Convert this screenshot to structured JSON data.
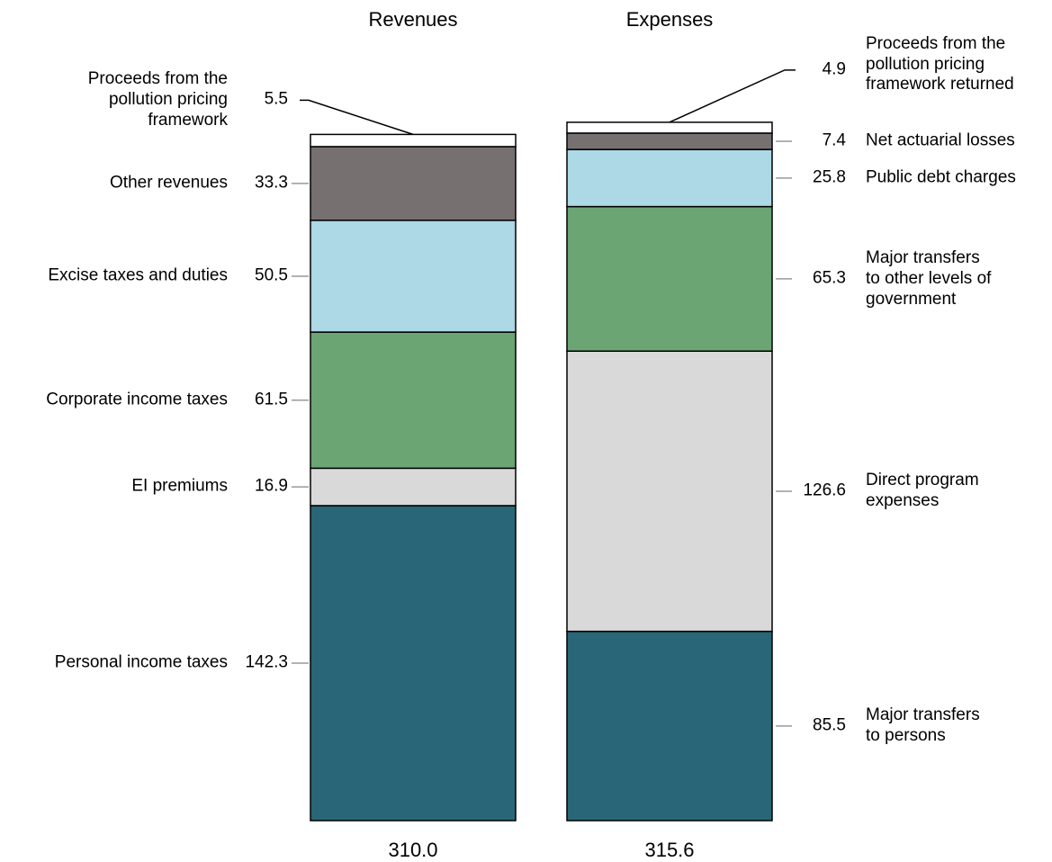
{
  "chart_data": {
    "type": "stacked_bar",
    "bars": [
      {
        "title": "Revenues",
        "total": 310,
        "total_label": "310.0",
        "segments": [
          {
            "name": "Personal income taxes",
            "value": 142.3,
            "color": "#296677"
          },
          {
            "name": "EI premiums",
            "value": 16.9,
            "color": "#d9d9d9"
          },
          {
            "name": "Corporate income taxes",
            "value": 61.5,
            "color": "#6ba574"
          },
          {
            "name": "Excise taxes and duties",
            "value": 50.5,
            "color": "#add8e6"
          },
          {
            "name": "Other revenues",
            "value": 33.3,
            "color": "#767170"
          },
          {
            "name": "Proceeds from the\npollution pricing\nframework",
            "value": 5.5,
            "color": "#ffffff"
          }
        ]
      },
      {
        "title": "Expenses",
        "total": 315.6,
        "total_label": "315.6",
        "segments": [
          {
            "name": "Major transfers\nto persons",
            "value": 85.5,
            "color": "#296677"
          },
          {
            "name": "Direct program\nexpenses",
            "value": 126.6,
            "color": "#d9d9d9"
          },
          {
            "name": "Major transfers\nto other levels of\ngovernment",
            "value": 65.3,
            "color": "#6ba574"
          },
          {
            "name": "Public debt charges",
            "value": 25.8,
            "color": "#add8e6"
          },
          {
            "name": "Net actuarial losses",
            "value": 7.4,
            "color": "#767170"
          },
          {
            "name": "Proceeds from the\npollution pricing\nframework returned",
            "value": 4.9,
            "color": "#ffffff"
          }
        ]
      }
    ]
  }
}
